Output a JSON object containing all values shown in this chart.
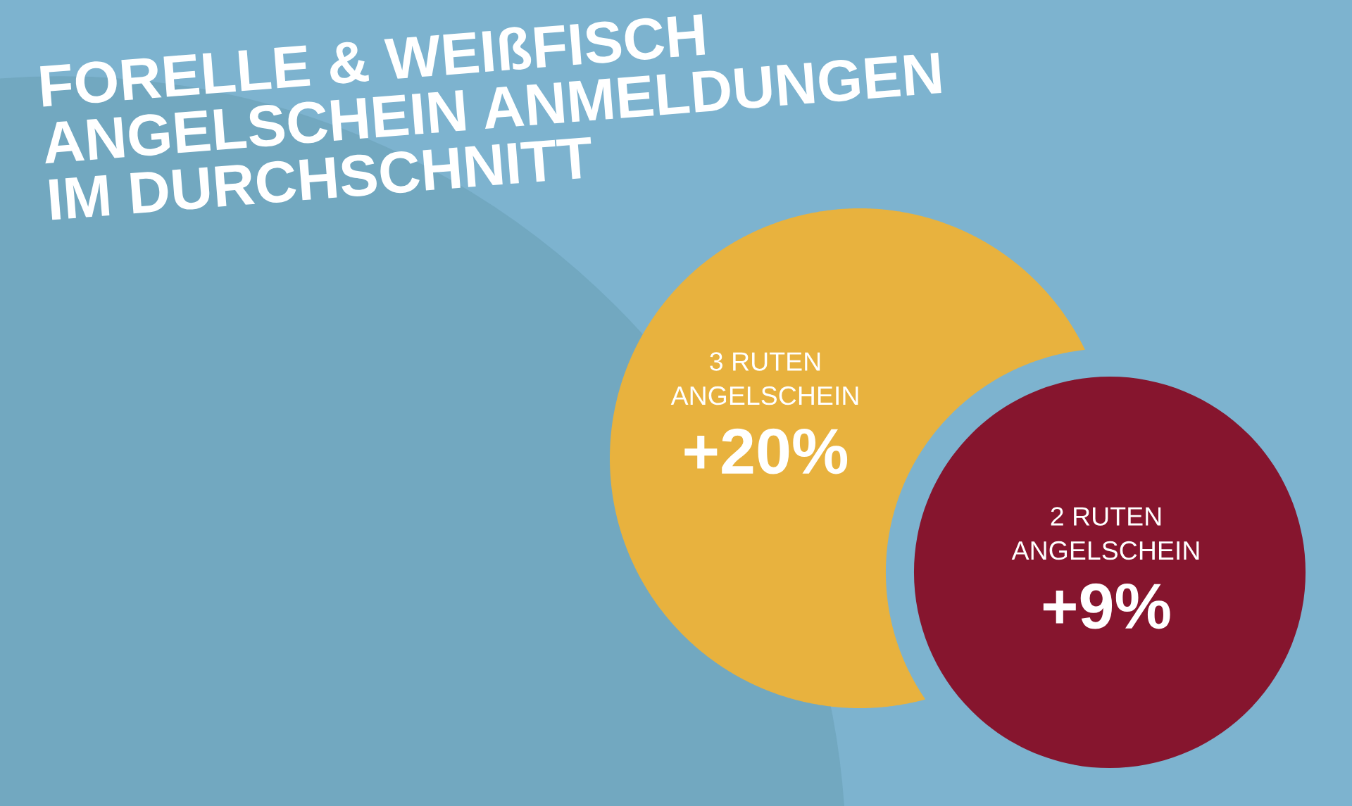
{
  "chart_data": {
    "type": "other",
    "title": "FORELLE & WEIßFISCH\nANGELSCHEIN ANMELDUNGEN\nIM DURCHSCHNITT",
    "categories": [
      "3 RUTEN\nANGELSCHEIN",
      "2 RUTEN\nANGELSCHEIN"
    ],
    "values": [
      20,
      9
    ],
    "value_labels": [
      "+20%",
      "+9%"
    ],
    "colors": [
      "#e8b23e",
      "#86152e"
    ]
  }
}
